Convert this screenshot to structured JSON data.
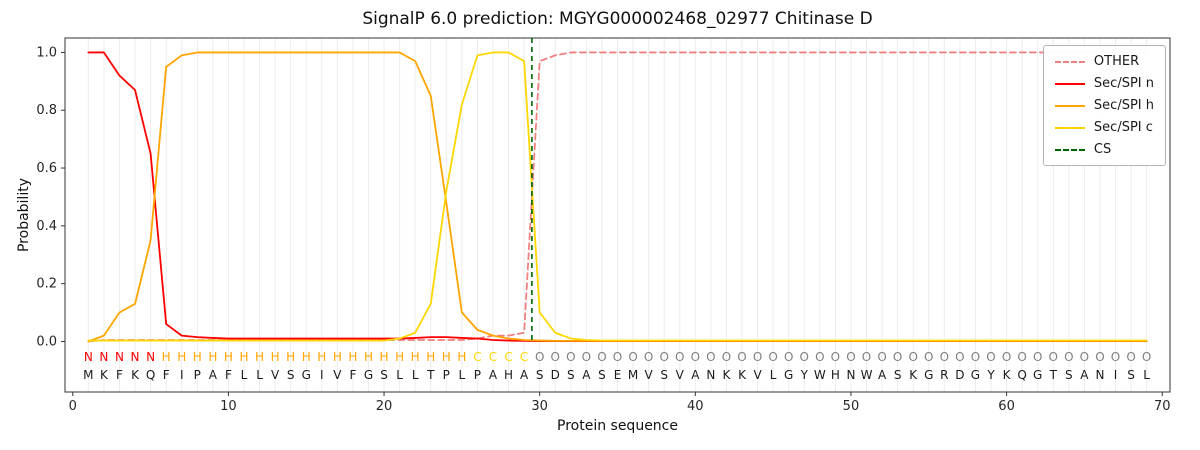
{
  "chart_data": {
    "type": "line",
    "title": "SignalP 6.0 prediction: MGYG000002468_02977 Chitinase D",
    "xlabel": "Protein sequence",
    "ylabel": "Probability",
    "xlim": [
      -0.5,
      70.5
    ],
    "ylim": [
      -0.175,
      1.05
    ],
    "x_ticks": [
      0,
      10,
      20,
      30,
      40,
      50,
      60,
      70
    ],
    "x_tick_labels": [
      "0",
      "10",
      "20",
      "30",
      "40",
      "50",
      "60",
      "70"
    ],
    "y_ticks": [
      0.0,
      0.2,
      0.4,
      0.6,
      0.8,
      1.0
    ],
    "y_tick_labels": [
      "0.0",
      "0.2",
      "0.4",
      "0.6",
      "0.8",
      "1.0"
    ],
    "grid": "vertical-per-residue",
    "grid_color": "#ececec",
    "sequence": "MKFKQFIPAFLLVSGIVFGSLLTPLPAHASDSASEMVSVANKKVLGYWHNWASKGRDGYKQGTSANISL",
    "regions": "NNNNNHHHHHHHHHHHHHHHHHHHHCCCCOOOOOOOOOOOOOOOOOOOOOOOOOOOOOOOOOOOOOOOO",
    "region_colors": {
      "N": "#ff0000",
      "H": "#ffa500",
      "C": "#ffd700",
      "O": "#808080"
    },
    "sequence_color": "#1a1a1a",
    "series": [
      {
        "name": "OTHER",
        "color": "#f08080",
        "dash": "6 4",
        "values": [
          0,
          0.005,
          0.005,
          0.005,
          0.005,
          0.005,
          0.005,
          0.005,
          0.005,
          0.005,
          0.005,
          0.005,
          0.005,
          0.005,
          0.005,
          0.005,
          0.005,
          0.005,
          0.005,
          0.005,
          0.005,
          0.005,
          0.005,
          0.005,
          0.005,
          0.01,
          0.02,
          0.02,
          0.03,
          0.97,
          0.99,
          1,
          1,
          1,
          1,
          1,
          1,
          1,
          1,
          1,
          1,
          1,
          1,
          1,
          1,
          1,
          1,
          1,
          1,
          1,
          1,
          1,
          1,
          1,
          1,
          1,
          1,
          1,
          1,
          1,
          1,
          1,
          1,
          1,
          1,
          1,
          1,
          1,
          1
        ]
      },
      {
        "name": "Sec/SPI n",
        "color": "#ff0000",
        "dash": null,
        "values": [
          1,
          1,
          0.92,
          0.87,
          0.65,
          0.06,
          0.02,
          0.015,
          0.012,
          0.01,
          0.01,
          0.01,
          0.01,
          0.01,
          0.01,
          0.01,
          0.01,
          0.01,
          0.01,
          0.01,
          0.01,
          0.012,
          0.015,
          0.015,
          0.012,
          0.01,
          0.005,
          0.003,
          0.002,
          0.001,
          0.001,
          0.001,
          0.001,
          0.001,
          0.001,
          0.001,
          0.001,
          0.001,
          0.001,
          0.001,
          0.001,
          0.001,
          0.001,
          0.001,
          0.001,
          0.001,
          0.001,
          0.001,
          0.001,
          0.001,
          0.001,
          0.001,
          0.001,
          0.001,
          0.001,
          0.001,
          0.001,
          0.001,
          0.001,
          0.001,
          0.001,
          0.001,
          0.001,
          0.001,
          0.001,
          0.001,
          0.001,
          0.001,
          0.001
        ]
      },
      {
        "name": "Sec/SPI h",
        "color": "#ffa500",
        "dash": null,
        "values": [
          0,
          0.02,
          0.1,
          0.13,
          0.35,
          0.95,
          0.99,
          1,
          1,
          1,
          1,
          1,
          1,
          1,
          1,
          1,
          1,
          1,
          1,
          1,
          1,
          0.97,
          0.85,
          0.48,
          0.1,
          0.04,
          0.02,
          0.01,
          0.005,
          0.003,
          0.002,
          0.002,
          0.002,
          0.002,
          0.002,
          0.002,
          0.002,
          0.002,
          0.002,
          0.002,
          0.002,
          0.002,
          0.002,
          0.002,
          0.002,
          0.002,
          0.002,
          0.002,
          0.002,
          0.002,
          0.002,
          0.002,
          0.002,
          0.002,
          0.002,
          0.002,
          0.002,
          0.002,
          0.002,
          0.002,
          0.002,
          0.002,
          0.002,
          0.002,
          0.002,
          0.002,
          0.002,
          0.002,
          0.002
        ]
      },
      {
        "name": "Sec/SPI c",
        "color": "#ffd700",
        "dash": null,
        "values": [
          0.003,
          0.003,
          0.003,
          0.003,
          0.003,
          0.003,
          0.003,
          0.003,
          0.003,
          0.003,
          0.003,
          0.003,
          0.003,
          0.003,
          0.003,
          0.003,
          0.003,
          0.003,
          0.003,
          0.003,
          0.01,
          0.03,
          0.13,
          0.52,
          0.82,
          0.99,
          1,
          1,
          0.97,
          0.1,
          0.03,
          0.01,
          0.005,
          0.003,
          0.003,
          0.003,
          0.003,
          0.003,
          0.003,
          0.003,
          0.003,
          0.003,
          0.003,
          0.003,
          0.003,
          0.003,
          0.003,
          0.003,
          0.003,
          0.003,
          0.003,
          0.003,
          0.003,
          0.003,
          0.003,
          0.003,
          0.003,
          0.003,
          0.003,
          0.003,
          0.003,
          0.003,
          0.003,
          0.003,
          0.003,
          0.003,
          0.003,
          0.003,
          0.003
        ]
      }
    ],
    "cs": {
      "label": "CS",
      "position": 29.5,
      "color": "#006400",
      "dash": "5 4"
    }
  },
  "legend": {
    "position": "top-right",
    "entries": [
      {
        "label": "OTHER",
        "color": "#f08080",
        "dashed": true
      },
      {
        "label": "Sec/SPI n",
        "color": "#ff0000",
        "dashed": false
      },
      {
        "label": "Sec/SPI h",
        "color": "#ffa500",
        "dashed": false
      },
      {
        "label": "Sec/SPI c",
        "color": "#ffd700",
        "dashed": false
      },
      {
        "label": "CS",
        "color": "#006400",
        "dashed": true
      }
    ]
  }
}
